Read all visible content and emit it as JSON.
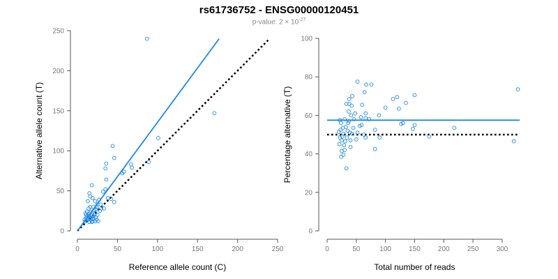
{
  "title": "rs61736752 - ENSG00000120451",
  "subtitle": {
    "text": "p-value: 2",
    "times": "×",
    "base": "10",
    "exponent": "-27"
  },
  "colors": {
    "accent": "#1e88e5",
    "axis": "#555555",
    "tick_text": "#777777",
    "reference": "#000000"
  },
  "chart_data": [
    {
      "type": "scatter",
      "xlabel": "Reference allele count (C)",
      "ylabel": "Alternative allele count (T)",
      "xlim": [
        0,
        250
      ],
      "ylim": [
        0,
        250
      ],
      "xticks": [
        0,
        50,
        100,
        150,
        200,
        250
      ],
      "yticks": [
        0,
        50,
        100,
        150,
        200,
        250
      ],
      "grid": false,
      "fit_line": {
        "x": [
          0,
          177
        ],
        "y": [
          0,
          240
        ]
      },
      "reference_line": {
        "x": [
          0,
          240
        ],
        "y": [
          0,
          240
        ],
        "style": "dotted"
      },
      "points": [
        [
          87,
          240
        ],
        [
          171,
          147
        ],
        [
          101,
          116
        ],
        [
          89,
          86
        ],
        [
          44,
          106
        ],
        [
          46,
          91
        ],
        [
          36,
          84
        ],
        [
          35,
          78
        ],
        [
          67,
          83
        ],
        [
          68,
          79
        ],
        [
          56,
          72
        ],
        [
          58,
          74
        ],
        [
          36,
          64
        ],
        [
          35,
          52
        ],
        [
          32,
          49
        ],
        [
          46,
          36
        ],
        [
          42,
          40
        ],
        [
          38,
          41
        ],
        [
          33,
          28
        ],
        [
          18,
          57
        ],
        [
          15,
          47
        ],
        [
          16,
          43
        ],
        [
          19,
          41
        ],
        [
          13,
          37
        ],
        [
          22,
          37
        ],
        [
          27,
          39
        ],
        [
          25,
          33
        ],
        [
          24,
          30
        ],
        [
          20,
          30
        ],
        [
          14,
          28
        ],
        [
          12,
          24
        ],
        [
          10,
          22
        ],
        [
          11,
          20
        ],
        [
          14,
          21
        ],
        [
          15,
          18
        ],
        [
          16,
          16
        ],
        [
          17,
          14
        ],
        [
          18,
          19
        ],
        [
          19,
          15
        ],
        [
          20,
          18
        ],
        [
          21,
          20
        ],
        [
          22,
          22
        ],
        [
          23,
          17
        ],
        [
          24,
          14
        ],
        [
          13,
          15
        ],
        [
          12,
          13
        ],
        [
          11,
          16
        ],
        [
          10,
          12
        ],
        [
          15,
          11
        ],
        [
          19,
          12
        ],
        [
          22,
          12
        ],
        [
          26,
          12
        ],
        [
          28,
          25
        ],
        [
          30,
          28
        ],
        [
          21,
          26
        ],
        [
          17,
          24
        ],
        [
          16,
          30
        ],
        [
          23,
          27
        ],
        [
          29,
          33
        ],
        [
          14,
          19
        ],
        [
          12,
          18
        ],
        [
          18,
          11
        ],
        [
          9,
          14
        ],
        [
          25,
          20
        ]
      ]
    },
    {
      "type": "scatter",
      "xlabel": "Total number of reads",
      "ylabel": "Percentage alternative (T)",
      "xlim": [
        0,
        330
      ],
      "ylim": [
        0,
        100
      ],
      "xticks": [
        0,
        50,
        100,
        150,
        200,
        250,
        300
      ],
      "yticks": [
        0,
        20,
        40,
        60,
        80,
        100
      ],
      "grid": false,
      "fit_line": {
        "x": [
          0,
          330
        ],
        "y": [
          57.5,
          57.5
        ]
      },
      "reference_line": {
        "x": [
          0,
          330
        ],
        "y": [
          50,
          50
        ],
        "style": "dotted"
      },
      "points": [
        [
          327,
          73.5
        ],
        [
          320,
          46.5
        ],
        [
          218,
          53.5
        ],
        [
          175,
          49
        ],
        [
          150,
          70.5
        ],
        [
          150,
          55
        ],
        [
          147,
          53
        ],
        [
          135,
          66.5
        ],
        [
          130,
          56
        ],
        [
          127,
          55.5
        ],
        [
          123,
          63.5
        ],
        [
          120,
          69.5
        ],
        [
          113,
          68.5
        ],
        [
          100,
          64
        ],
        [
          90,
          48.5
        ],
        [
          89,
          60
        ],
        [
          82,
          52.5
        ],
        [
          82,
          42.5
        ],
        [
          76,
          76
        ],
        [
          72,
          58
        ],
        [
          67,
          76
        ],
        [
          66,
          61
        ],
        [
          66,
          58.5
        ],
        [
          66,
          48.5
        ],
        [
          64,
          72
        ],
        [
          63,
          50
        ],
        [
          60,
          65.5
        ],
        [
          59,
          55
        ],
        [
          58,
          59
        ],
        [
          56,
          54.5
        ],
        [
          52,
          77.5
        ],
        [
          52,
          51
        ],
        [
          50,
          47.5
        ],
        [
          48,
          61
        ],
        [
          46,
          58
        ],
        [
          45,
          53.5
        ],
        [
          43,
          70
        ],
        [
          43,
          50.5
        ],
        [
          42,
          65
        ],
        [
          41,
          60
        ],
        [
          40,
          47
        ],
        [
          40,
          43.5
        ],
        [
          39,
          51
        ],
        [
          38,
          68.5
        ],
        [
          38,
          66
        ],
        [
          37,
          62
        ],
        [
          37,
          57
        ],
        [
          36,
          56
        ],
        [
          35,
          52
        ],
        [
          34,
          48.5
        ],
        [
          33,
          66
        ],
        [
          33,
          32.5
        ],
        [
          32,
          54
        ],
        [
          31,
          46.5
        ],
        [
          30,
          58
        ],
        [
          30,
          42
        ],
        [
          29,
          44.5
        ],
        [
          28,
          50.5
        ],
        [
          28,
          39.5
        ],
        [
          27,
          53.5
        ],
        [
          26,
          49
        ],
        [
          25,
          47
        ],
        [
          25,
          41.5
        ],
        [
          24,
          38.5
        ],
        [
          24,
          56
        ],
        [
          23,
          52.5
        ],
        [
          22,
          48.5
        ],
        [
          22,
          57.5
        ],
        [
          21,
          45
        ],
        [
          20,
          51.5
        ]
      ]
    }
  ]
}
